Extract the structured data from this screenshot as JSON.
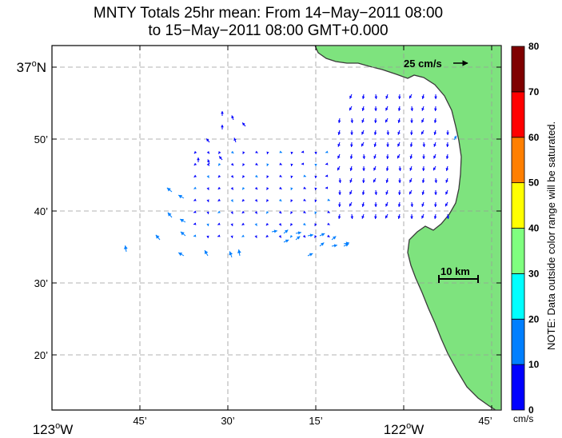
{
  "title": {
    "line1": "MNTY Totals 25hr mean: From 14−May−2011 08:00",
    "line2": "to 15−May−2011 08:00 GMT+0.000"
  },
  "map": {
    "lat_labels": [
      {
        "text": "37",
        "sup": "o",
        "suffix": "N"
      },
      {
        "text": "50’"
      },
      {
        "text": "40’"
      },
      {
        "text": "30’"
      },
      {
        "text": "20’"
      }
    ],
    "lon_labels": [
      {
        "text": "123",
        "sup": "o",
        "suffix": "W"
      },
      {
        "text": "45’"
      },
      {
        "text": "30’"
      },
      {
        "text": "15’"
      },
      {
        "text": "122",
        "sup": "o",
        "suffix": "W"
      },
      {
        "text": "45’"
      }
    ],
    "reference_vector_label": "25 cm/s",
    "scale_bar_label": "10 km",
    "land_color": "#7ee37e",
    "ocean_color": "#ffffff"
  },
  "colorbar": {
    "ticks": [
      "0",
      "10",
      "20",
      "30",
      "40",
      "50",
      "60",
      "70",
      "80"
    ],
    "colors": [
      "#0000ff",
      "#007fff",
      "#00ffff",
      "#7fff7f",
      "#ffff00",
      "#ff7f00",
      "#ff0000",
      "#7f0000"
    ],
    "unit": "cm/s",
    "note": "NOTE: Data outside color range will be saturated."
  }
}
